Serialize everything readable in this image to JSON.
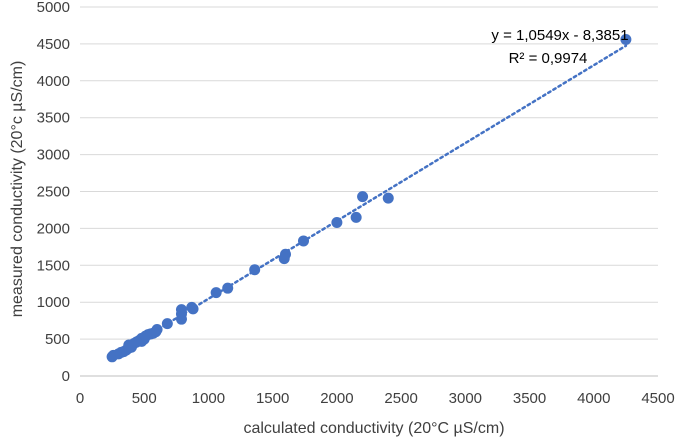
{
  "chart_data": {
    "type": "scatter",
    "title": "",
    "xlabel": "calculated conductivity (20°C µS/cm)",
    "ylabel": "measured conductivity (20°c µS/cm)",
    "xlim": [
      0,
      4500
    ],
    "ylim": [
      0,
      5000
    ],
    "x_ticks": [
      0,
      500,
      1000,
      1500,
      2000,
      2500,
      3000,
      3500,
      4000,
      4500
    ],
    "y_ticks": [
      0,
      500,
      1000,
      1500,
      2000,
      2500,
      3000,
      3500,
      4000,
      4500,
      5000
    ],
    "grid": "horizontal",
    "legend": "none",
    "marker_color": "#4472C4",
    "trendline": {
      "type": "linear",
      "slope": 1.0549,
      "intercept": -8.3851,
      "style": "dotted",
      "x_range": [
        250,
        4250
      ]
    },
    "annotations": {
      "equation": "y = 1,0549x - 8,3851",
      "r_squared": "R² = 0,9974"
    },
    "points": [
      {
        "x": 250,
        "y": 260
      },
      {
        "x": 260,
        "y": 280
      },
      {
        "x": 300,
        "y": 300
      },
      {
        "x": 320,
        "y": 320
      },
      {
        "x": 340,
        "y": 330
      },
      {
        "x": 360,
        "y": 350
      },
      {
        "x": 380,
        "y": 380
      },
      {
        "x": 380,
        "y": 420
      },
      {
        "x": 400,
        "y": 390
      },
      {
        "x": 420,
        "y": 440
      },
      {
        "x": 440,
        "y": 460
      },
      {
        "x": 460,
        "y": 480
      },
      {
        "x": 480,
        "y": 470
      },
      {
        "x": 480,
        "y": 510
      },
      {
        "x": 500,
        "y": 500
      },
      {
        "x": 510,
        "y": 540
      },
      {
        "x": 530,
        "y": 560
      },
      {
        "x": 550,
        "y": 570
      },
      {
        "x": 570,
        "y": 580
      },
      {
        "x": 590,
        "y": 600
      },
      {
        "x": 600,
        "y": 630
      },
      {
        "x": 680,
        "y": 710
      },
      {
        "x": 790,
        "y": 770
      },
      {
        "x": 790,
        "y": 840
      },
      {
        "x": 790,
        "y": 900
      },
      {
        "x": 870,
        "y": 930
      },
      {
        "x": 880,
        "y": 910
      },
      {
        "x": 1060,
        "y": 1130
      },
      {
        "x": 1150,
        "y": 1190
      },
      {
        "x": 1360,
        "y": 1440
      },
      {
        "x": 1590,
        "y": 1590
      },
      {
        "x": 1600,
        "y": 1650
      },
      {
        "x": 1740,
        "y": 1830
      },
      {
        "x": 2000,
        "y": 2080
      },
      {
        "x": 2150,
        "y": 2150
      },
      {
        "x": 2200,
        "y": 2430
      },
      {
        "x": 2400,
        "y": 2410
      },
      {
        "x": 4250,
        "y": 4560
      }
    ]
  }
}
